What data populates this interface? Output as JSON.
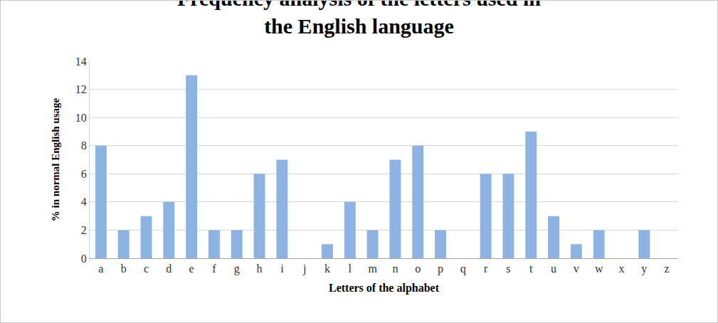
{
  "chart_data": {
    "type": "bar",
    "title": "Frequency analysis of the letters used in\nthe English language",
    "x_label": "Letters of the alphabet",
    "y_label": "% in normal English usage",
    "categories": [
      "a",
      "b",
      "c",
      "d",
      "e",
      "f",
      "g",
      "h",
      "i",
      "j",
      "k",
      "l",
      "m",
      "n",
      "o",
      "p",
      "q",
      "r",
      "s",
      "t",
      "u",
      "v",
      "w",
      "x",
      "y",
      "z"
    ],
    "values": [
      8,
      2,
      3,
      4,
      13,
      2,
      2,
      6,
      7,
      0,
      1,
      4,
      2,
      7,
      8,
      2,
      0,
      6,
      6,
      9,
      3,
      1,
      2,
      0,
      2,
      0
    ],
    "color": "#8db3e2",
    "ylim": [
      0,
      14
    ],
    "yticks": [
      0,
      2,
      4,
      6,
      8,
      10,
      12,
      14
    ],
    "grid": true
  }
}
